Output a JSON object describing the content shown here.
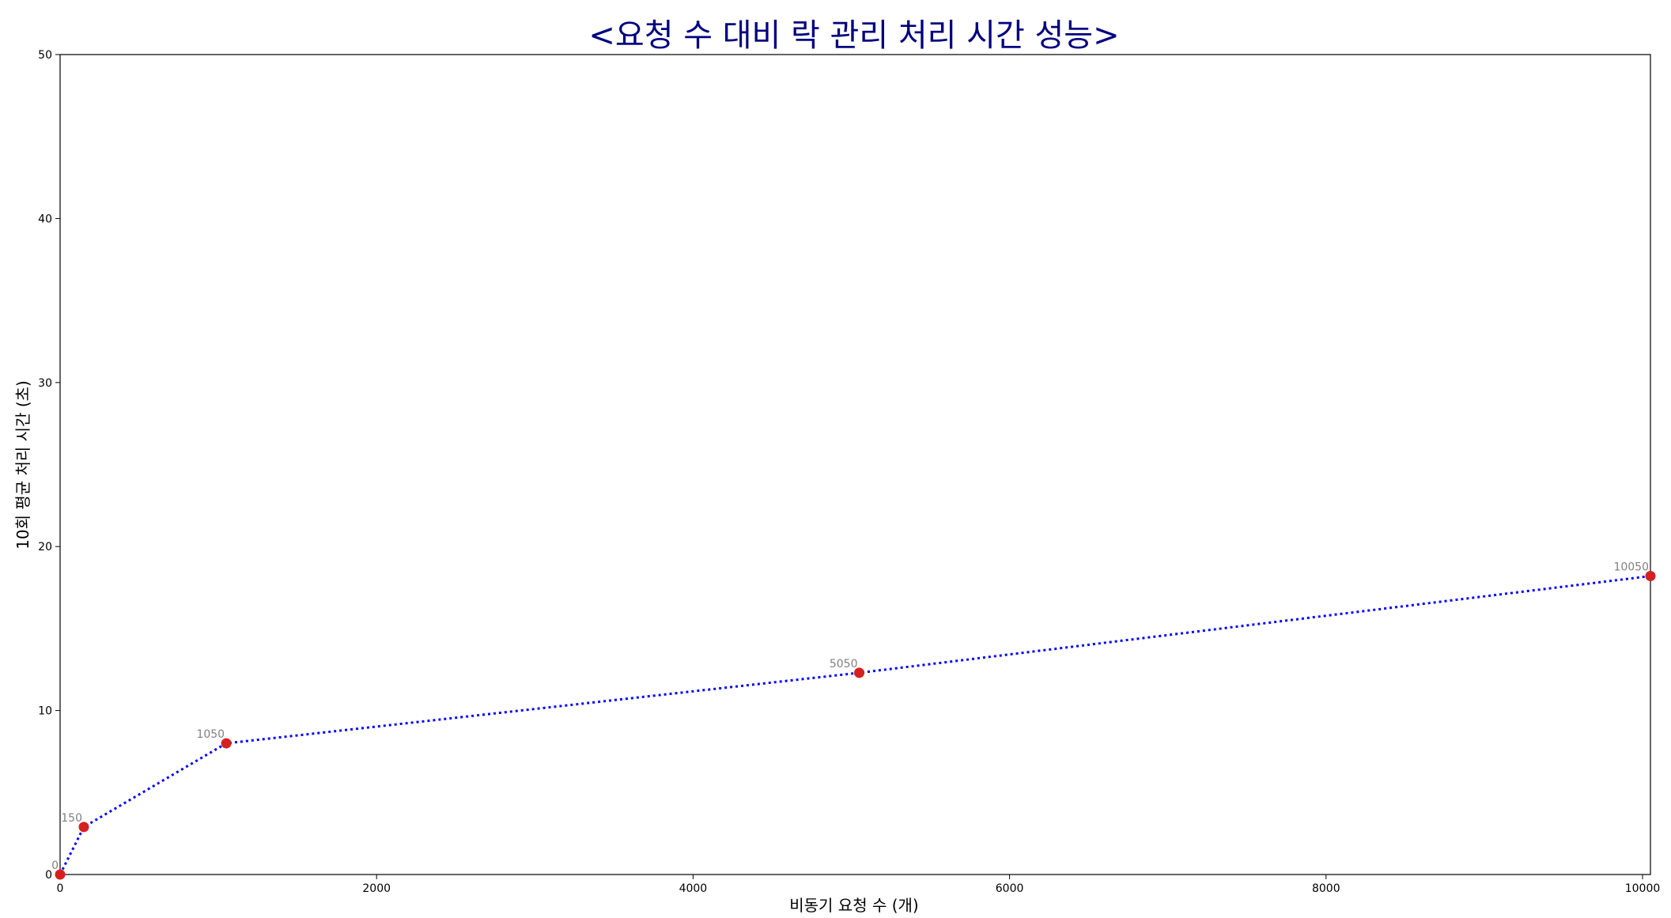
{
  "chart_data": {
    "type": "line",
    "title": "<요청 수 대비 락 관리 처리 시간 성능>",
    "xlabel": "비동기 요청 수 (개)",
    "ylabel": "10회 평균 처리 시간 (초)",
    "xlim": [
      0,
      10050
    ],
    "ylim": [
      0,
      50
    ],
    "x_ticks": [
      0,
      2000,
      4000,
      6000,
      8000,
      10000
    ],
    "y_ticks": [
      0,
      10,
      20,
      30,
      40,
      50
    ],
    "grid": false,
    "legend": "none",
    "series": [
      {
        "x": [
          0,
          150,
          1050,
          5050,
          10050
        ],
        "y": [
          0.0,
          2.9,
          8.0,
          12.3,
          18.2
        ],
        "point_labels": [
          "0",
          "150",
          "1050",
          "5050",
          "10050"
        ]
      }
    ],
    "colors": {
      "title": "#000080",
      "line": "#0000ff",
      "marker": "#d62020",
      "point_label": "#808080"
    },
    "line_style": "dotted",
    "marker": "circle"
  }
}
